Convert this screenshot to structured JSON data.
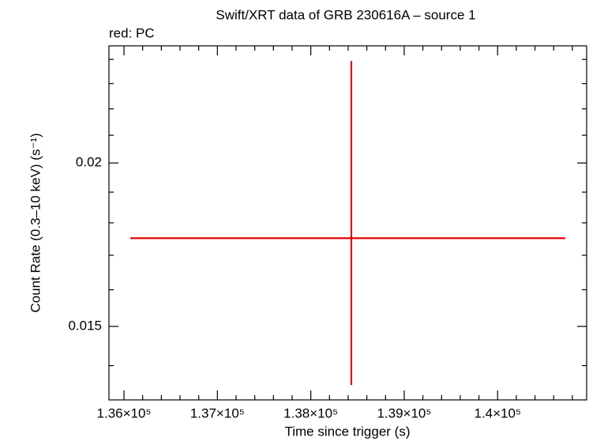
{
  "chart_data": {
    "type": "scatter",
    "title": "Swift/XRT data of GRB 230616A – source 1",
    "subtitle": "red: PC",
    "xlabel": "Time since trigger (s)",
    "ylabel": "Count Rate (0.3–10 keV) (s⁻¹)",
    "xlim": [
      135839,
      140953
    ],
    "ylim": [
      0.01318,
      0.02458
    ],
    "ylog": true,
    "xticks": [
      {
        "value": 136000,
        "label": "1.36×10⁵"
      },
      {
        "value": 137000,
        "label": "1.37×10⁵"
      },
      {
        "value": 138000,
        "label": "1.38×10⁵"
      },
      {
        "value": 139000,
        "label": "1.39×10⁵"
      },
      {
        "value": 140000,
        "label": "1.4×10⁵"
      }
    ],
    "xminorticks": [
      136200,
      136400,
      136600,
      136800,
      137200,
      137400,
      137600,
      137800,
      138200,
      138400,
      138600,
      138800,
      139200,
      139400,
      139600,
      139800,
      140200,
      140400,
      140600,
      140800
    ],
    "yticks": [
      0.015,
      0.02
    ],
    "yminorticks": [
      0.014,
      0.016,
      0.017,
      0.018,
      0.019,
      0.021,
      0.022,
      0.023,
      0.024
    ],
    "series": [
      {
        "color": "#e00000",
        "x": [
          138434
        ],
        "xerr_minus": [
          2366
        ],
        "xerr_plus": [
          2291
        ],
        "values": [
          0.01752
        ],
        "yerr_minus": [
          0.00399
        ],
        "yerr_plus": [
          0.00641
        ]
      }
    ]
  }
}
